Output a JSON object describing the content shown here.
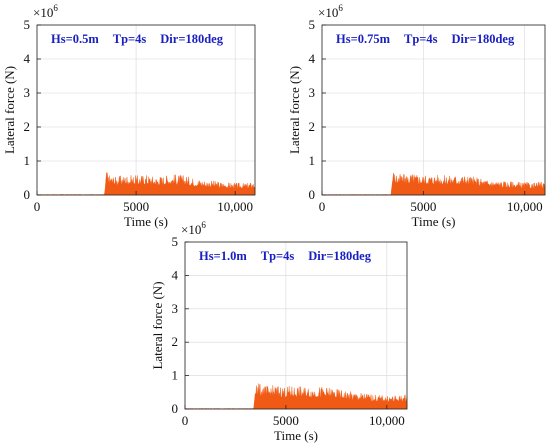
{
  "chart_data": [
    {
      "type": "area",
      "annotation": [
        "Hs=0.5m",
        "Tp=4s",
        "Dir=180deg"
      ],
      "xlabel": "Time (s)",
      "ylabel": "Lateral force (N)",
      "y_multiplier": "×10",
      "y_exponent": "6",
      "xlim": [
        0,
        11000
      ],
      "ylim": [
        0,
        5
      ],
      "x_ticks": [
        0,
        5000,
        10000
      ],
      "x_tick_labels": [
        "0",
        "5000",
        "10,000"
      ],
      "y_ticks": [
        0,
        1,
        2,
        3,
        4,
        5
      ],
      "y_tick_labels": [
        "0",
        "1",
        "2",
        "3",
        "4",
        "5"
      ],
      "grid": true,
      "series_color": "#f05a14",
      "series": [
        {
          "x": [
            0,
            3400,
            3500,
            3600,
            4000,
            4500,
            5000,
            5500,
            6000,
            6500,
            7000,
            7500,
            8000,
            8500,
            9000,
            9500,
            10000,
            10500,
            11000
          ],
          "peak": [
            0.02,
            0.02,
            0.75,
            0.62,
            0.55,
            0.6,
            0.58,
            0.62,
            0.55,
            0.6,
            0.62,
            0.58,
            0.5,
            0.45,
            0.42,
            0.38,
            0.36,
            0.35,
            0.4
          ],
          "base": [
            0.0,
            0.0,
            0.18,
            0.15,
            0.15,
            0.15,
            0.14,
            0.14,
            0.14,
            0.14,
            0.14,
            0.13,
            0.12,
            0.1,
            0.1,
            0.1,
            0.1,
            0.1,
            0.1
          ]
        }
      ]
    },
    {
      "type": "area",
      "annotation": [
        "Hs=0.75m",
        "Tp=4s",
        "Dir=180deg"
      ],
      "xlabel": "Time (s)",
      "ylabel": "Lateral force (N)",
      "y_multiplier": "×10",
      "y_exponent": "6",
      "xlim": [
        0,
        11000
      ],
      "ylim": [
        0,
        5
      ],
      "x_ticks": [
        0,
        5000,
        10000
      ],
      "x_tick_labels": [
        "0",
        "5000",
        "10,000"
      ],
      "y_ticks": [
        0,
        1,
        2,
        3,
        4,
        5
      ],
      "y_tick_labels": [
        "0",
        "1",
        "2",
        "3",
        "4",
        "5"
      ],
      "grid": true,
      "series_color": "#f05a14",
      "series": [
        {
          "x": [
            0,
            3400,
            3500,
            3600,
            4000,
            4500,
            5000,
            5500,
            6000,
            6500,
            7000,
            7500,
            8000,
            8500,
            9000,
            9500,
            10000,
            10500,
            11000
          ],
          "peak": [
            0.02,
            0.02,
            0.8,
            0.65,
            0.62,
            0.65,
            0.6,
            0.62,
            0.58,
            0.6,
            0.6,
            0.55,
            0.48,
            0.44,
            0.42,
            0.4,
            0.38,
            0.36,
            0.42
          ],
          "base": [
            0.0,
            0.0,
            0.2,
            0.16,
            0.16,
            0.16,
            0.15,
            0.15,
            0.15,
            0.15,
            0.14,
            0.13,
            0.12,
            0.11,
            0.1,
            0.1,
            0.1,
            0.1,
            0.1
          ]
        }
      ]
    },
    {
      "type": "area",
      "annotation": [
        "Hs=1.0m",
        "Tp=4s",
        "Dir=180deg"
      ],
      "xlabel": "Time (s)",
      "ylabel": "Lateral force (N)",
      "y_multiplier": "×10",
      "y_exponent": "6",
      "xlim": [
        0,
        11000
      ],
      "ylim": [
        0,
        5
      ],
      "x_ticks": [
        0,
        5000,
        10000
      ],
      "x_tick_labels": [
        "0",
        "5000",
        "10,000"
      ],
      "y_ticks": [
        0,
        1,
        2,
        3,
        4,
        5
      ],
      "y_tick_labels": [
        "0",
        "1",
        "2",
        "3",
        "4",
        "5"
      ],
      "grid": true,
      "series_color": "#f05a14",
      "series": [
        {
          "x": [
            0,
            3400,
            3500,
            3600,
            4000,
            4500,
            5000,
            5500,
            6000,
            6500,
            7000,
            7500,
            8000,
            8500,
            9000,
            9500,
            10000,
            10500,
            11000
          ],
          "peak": [
            0.02,
            0.02,
            1.0,
            0.78,
            0.7,
            0.72,
            0.68,
            0.7,
            0.65,
            0.68,
            0.66,
            0.6,
            0.55,
            0.5,
            0.48,
            0.42,
            0.4,
            0.4,
            0.45
          ],
          "base": [
            0.0,
            0.0,
            0.22,
            0.18,
            0.18,
            0.18,
            0.17,
            0.17,
            0.17,
            0.16,
            0.16,
            0.15,
            0.14,
            0.12,
            0.12,
            0.12,
            0.12,
            0.12,
            0.12
          ]
        }
      ]
    }
  ]
}
